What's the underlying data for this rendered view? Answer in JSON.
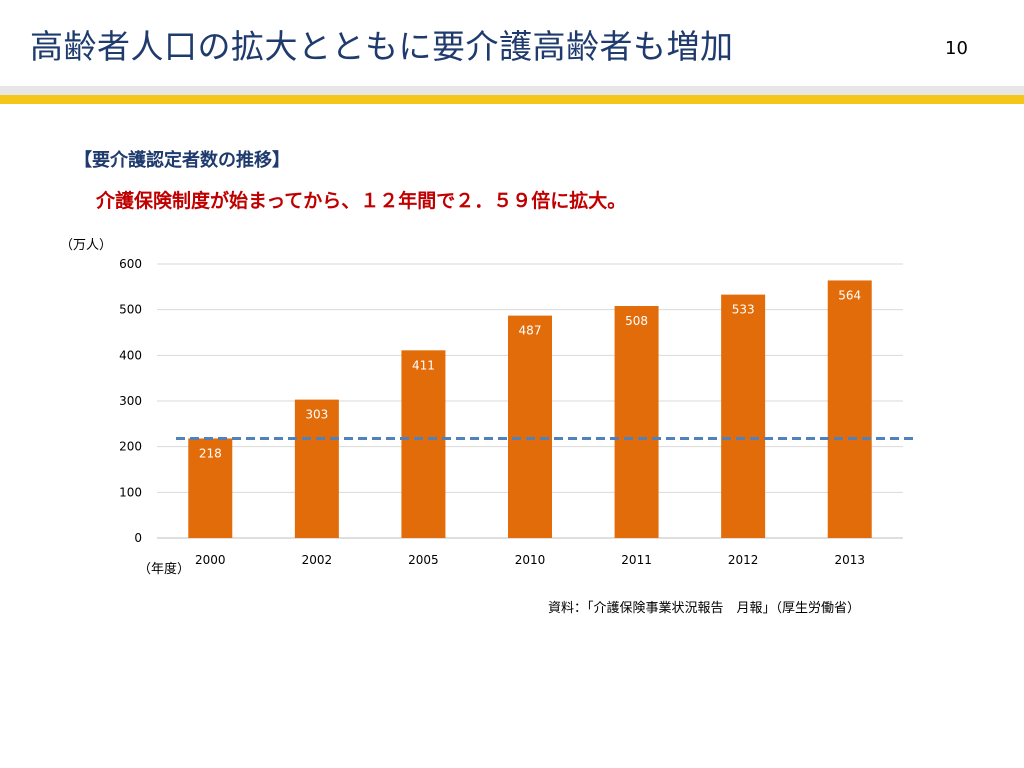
{
  "slide": {
    "title": "高齢者人口の拡大とともに要介護高齢者も増加",
    "page_number": "10",
    "section_heading": "【要介護認定者数の推移】",
    "summary": "介護保険制度が始まってから、１２年間で２．５９倍に拡大。",
    "source": "資料：「介護保険事業状況報告　月報」（厚生労働省）"
  },
  "chart_data": {
    "type": "bar",
    "title": "",
    "ylabel": "（万人）",
    "xlabel": "（年度）",
    "categories": [
      "2000",
      "2002",
      "2005",
      "2010",
      "2011",
      "2012",
      "2013"
    ],
    "values": [
      218,
      303,
      411,
      487,
      508,
      533,
      564
    ],
    "ylim": [
      0,
      600
    ],
    "yticks": [
      0,
      100,
      200,
      300,
      400,
      500,
      600
    ],
    "reference_line": {
      "value": 218,
      "style": "dashed"
    },
    "grid": true,
    "legend": "none"
  },
  "colors": {
    "bar": "#e36c0a",
    "reference_line": "#4f81bd",
    "gridline": "#d9d9d9",
    "title_text": "#1f3b6e",
    "summary_text": "#c00000",
    "accent_band": "#f5c518"
  }
}
